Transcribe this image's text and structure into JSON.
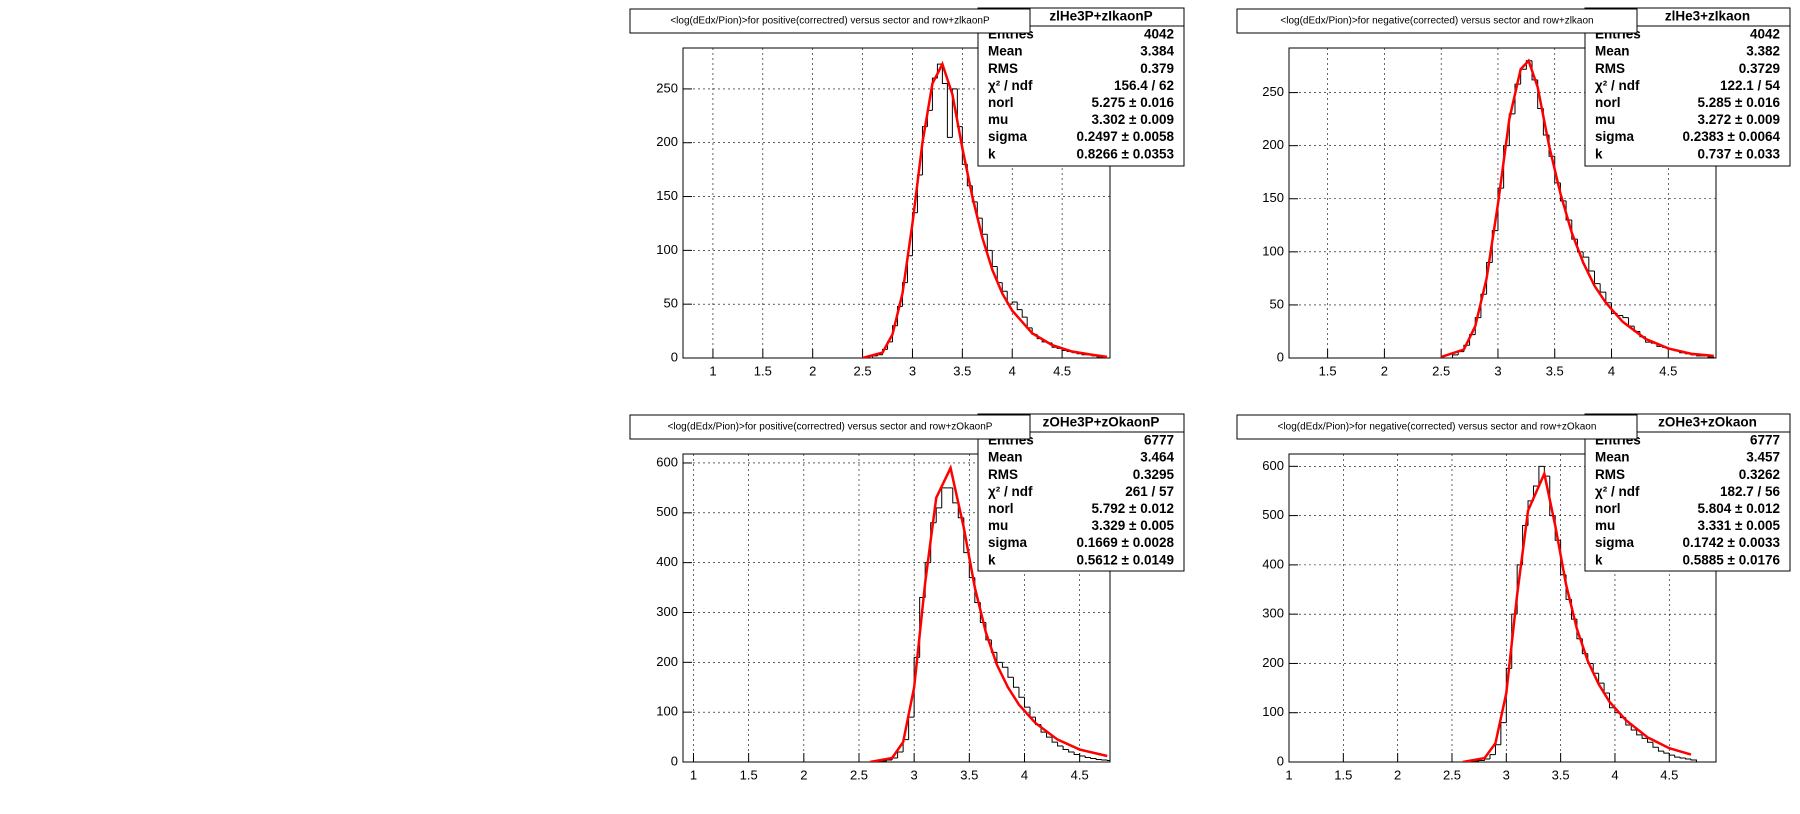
{
  "chart_data": [
    {
      "type": "histogram",
      "title": "<log(dEdx/Pion)>for positive(correctred) versus sector and row+zlkaonP",
      "stats": {
        "title": "zlHe3P+zIkaonP",
        "rows": [
          {
            "label": "Entries",
            "value": "4042"
          },
          {
            "label": "Mean",
            "value": "3.384"
          },
          {
            "label": "RMS",
            "value": "0.379"
          },
          {
            "label": "χ² / ndf",
            "value": "156.4 / 62"
          },
          {
            "label": "norl",
            "value": "5.275 ± 0.016"
          },
          {
            "label": "mu",
            "value": "3.302 ± 0.009"
          },
          {
            "label": "sigma",
            "value": "0.2497 ± 0.0058"
          },
          {
            "label": "k",
            "value": "0.8266 ± 0.0353"
          }
        ]
      },
      "color": "#000000",
      "bins": [
        2.6,
        2.65,
        2.7,
        2.75,
        2.8,
        2.85,
        2.9,
        2.95,
        3.0,
        3.05,
        3.1,
        3.15,
        3.2,
        3.25,
        3.3,
        3.35,
        3.4,
        3.45,
        3.5,
        3.55,
        3.6,
        3.65,
        3.7,
        3.75,
        3.8,
        3.85,
        3.9,
        3.95,
        4.0,
        4.05,
        4.1,
        4.15,
        4.2,
        4.25,
        4.3,
        4.35,
        4.4,
        4.45,
        4.5,
        4.55,
        4.6,
        4.65,
        4.7,
        4.75,
        4.8,
        4.85,
        4.9
      ],
      "counts": [
        2,
        3,
        8,
        15,
        30,
        48,
        70,
        95,
        135,
        170,
        215,
        230,
        260,
        273,
        255,
        205,
        250,
        215,
        180,
        160,
        145,
        130,
        115,
        100,
        85,
        70,
        62,
        50,
        52,
        45,
        38,
        28,
        22,
        18,
        15,
        14,
        10,
        9,
        7,
        6,
        5,
        4,
        3,
        3,
        2,
        1
      ],
      "fit": {
        "color": "#ff0000",
        "x": [
          2.5,
          2.7,
          2.8,
          2.9,
          3.0,
          3.1,
          3.2,
          3.3,
          3.4,
          3.5,
          3.6,
          3.7,
          3.8,
          3.9,
          4.0,
          4.2,
          4.4,
          4.6,
          4.8,
          4.95
        ],
        "y": [
          0,
          5,
          22,
          60,
          125,
          200,
          255,
          273,
          245,
          195,
          150,
          112,
          82,
          60,
          44,
          23,
          12,
          6,
          3,
          1
        ]
      },
      "xlim": [
        0.7,
        4.98
      ],
      "ylim": [
        0,
        288
      ],
      "xticks": [
        1,
        1.5,
        2,
        2.5,
        3,
        3.5,
        4,
        4.5
      ],
      "yticks": [
        0,
        50,
        100,
        150,
        200,
        250
      ],
      "grid": true
    },
    {
      "type": "histogram",
      "title": "<log(dEdx/Pion)>for negative(corrected) versus sector and row+zlkaon",
      "stats": {
        "title": "zlHe3+zIkaon",
        "rows": [
          {
            "label": "Entries",
            "value": "4042"
          },
          {
            "label": "Mean",
            "value": "3.382"
          },
          {
            "label": "RMS",
            "value": "0.3729"
          },
          {
            "label": "χ² / ndf",
            "value": "122.1 / 54"
          },
          {
            "label": "norl",
            "value": "5.285 ± 0.016"
          },
          {
            "label": "mu",
            "value": "3.272 ± 0.009"
          },
          {
            "label": "sigma",
            "value": "0.2383 ± 0.0064"
          },
          {
            "label": "k",
            "value": "0.737 ± 0.033"
          }
        ]
      },
      "color": "#000000",
      "bins": [
        2.6,
        2.65,
        2.7,
        2.75,
        2.8,
        2.85,
        2.9,
        2.95,
        3.0,
        3.05,
        3.1,
        3.15,
        3.2,
        3.25,
        3.3,
        3.35,
        3.4,
        3.45,
        3.5,
        3.55,
        3.6,
        3.65,
        3.7,
        3.75,
        3.8,
        3.85,
        3.9,
        3.95,
        4.0,
        4.05,
        4.1,
        4.15,
        4.2,
        4.25,
        4.3,
        4.35,
        4.4,
        4.45,
        4.5,
        4.55,
        4.6,
        4.65,
        4.7,
        4.75,
        4.8,
        4.85,
        4.9
      ],
      "counts": [
        3,
        6,
        12,
        22,
        38,
        60,
        90,
        120,
        160,
        200,
        230,
        258,
        272,
        280,
        262,
        235,
        210,
        190,
        165,
        148,
        130,
        112,
        100,
        95,
        82,
        70,
        62,
        52,
        42,
        40,
        38,
        30,
        25,
        20,
        15,
        14,
        11,
        10,
        8,
        7,
        5,
        4,
        3,
        2,
        2,
        1
      ],
      "fit": {
        "color": "#ff0000",
        "x": [
          2.5,
          2.7,
          2.8,
          2.9,
          3.0,
          3.1,
          3.2,
          3.27,
          3.35,
          3.45,
          3.55,
          3.65,
          3.75,
          3.85,
          3.95,
          4.1,
          4.3,
          4.5,
          4.7,
          4.9
        ],
        "y": [
          1,
          8,
          30,
          75,
          145,
          225,
          272,
          280,
          255,
          200,
          155,
          118,
          90,
          68,
          52,
          34,
          18,
          9,
          4,
          2
        ]
      },
      "xlim": [
        1.16,
        4.92
      ],
      "ylim": [
        0,
        292
      ],
      "xticks": [
        1.5,
        2,
        2.5,
        3,
        3.5,
        4,
        4.5
      ],
      "yticks": [
        0,
        50,
        100,
        150,
        200,
        250
      ],
      "grid": true
    },
    {
      "type": "histogram",
      "title": "<log(dEdx/Pion)>for positive(correctred) versus sector and row+zOkaonP",
      "stats": {
        "title": "zOHe3P+zOkaonP",
        "rows": [
          {
            "label": "Entries",
            "value": "6777"
          },
          {
            "label": "Mean",
            "value": "3.464"
          },
          {
            "label": "RMS",
            "value": "0.3295"
          },
          {
            "label": "χ² / ndf",
            "value": "261 / 57"
          },
          {
            "label": "norl",
            "value": "5.792 ± 0.012"
          },
          {
            "label": "mu",
            "value": "3.329 ± 0.005"
          },
          {
            "label": "sigma",
            "value": "0.1669 ± 0.0028"
          },
          {
            "label": "k",
            "value": "0.5612 ± 0.0149"
          }
        ]
      },
      "color": "#000000",
      "bins": [
        2.7,
        2.75,
        2.8,
        2.85,
        2.9,
        2.95,
        3.0,
        3.05,
        3.1,
        3.15,
        3.2,
        3.25,
        3.3,
        3.35,
        3.4,
        3.45,
        3.5,
        3.55,
        3.6,
        3.65,
        3.7,
        3.75,
        3.8,
        3.85,
        3.9,
        3.95,
        4.0,
        4.05,
        4.1,
        4.15,
        4.2,
        4.25,
        4.3,
        4.35,
        4.4,
        4.45,
        4.5,
        4.55,
        4.6,
        4.65,
        4.7,
        4.75,
        4.8
      ],
      "counts": [
        2,
        4,
        8,
        20,
        45,
        90,
        210,
        330,
        400,
        480,
        510,
        550,
        550,
        520,
        490,
        420,
        370,
        320,
        280,
        245,
        220,
        200,
        190,
        170,
        150,
        130,
        110,
        90,
        75,
        60,
        50,
        40,
        32,
        25,
        20,
        15,
        12,
        9,
        7,
        5,
        4,
        3
      ],
      "fit": {
        "color": "#ff0000",
        "x": [
          2.6,
          2.8,
          2.9,
          3.0,
          3.1,
          3.2,
          3.33,
          3.45,
          3.55,
          3.65,
          3.75,
          3.85,
          3.95,
          4.1,
          4.3,
          4.5,
          4.75
        ],
        "y": [
          0,
          8,
          40,
          150,
          360,
          530,
          590,
          470,
          350,
          260,
          195,
          150,
          115,
          78,
          45,
          25,
          12
        ]
      },
      "xlim": [
        0.905,
        4.775
      ],
      "ylim": [
        0,
        618
      ],
      "xticks": [
        1,
        1.5,
        2,
        2.5,
        3,
        3.5,
        4,
        4.5
      ],
      "yticks": [
        0,
        100,
        200,
        300,
        400,
        500,
        600
      ],
      "grid": true
    },
    {
      "type": "histogram",
      "title": "<log(dEdx/Pion)>for negative(corrected) versus sector and row+zOkaon",
      "stats": {
        "title": "zOHe3+zOkaon",
        "rows": [
          {
            "label": "Entries",
            "value": "6777"
          },
          {
            "label": "Mean",
            "value": "3.457"
          },
          {
            "label": "RMS",
            "value": "0.3262"
          },
          {
            "label": "χ² / ndf",
            "value": "182.7 / 56"
          },
          {
            "label": "norl",
            "value": "5.804 ± 0.012"
          },
          {
            "label": "mu",
            "value": "3.331 ± 0.005"
          },
          {
            "label": "sigma",
            "value": "0.1742 ± 0.0033"
          },
          {
            "label": "k",
            "value": "0.5885 ± 0.0176"
          }
        ]
      },
      "color": "#000000",
      "bins": [
        2.7,
        2.75,
        2.8,
        2.85,
        2.9,
        2.95,
        3.0,
        3.05,
        3.1,
        3.15,
        3.2,
        3.25,
        3.3,
        3.35,
        3.4,
        3.45,
        3.5,
        3.55,
        3.6,
        3.65,
        3.7,
        3.75,
        3.8,
        3.85,
        3.9,
        3.95,
        4.0,
        4.05,
        4.1,
        4.15,
        4.2,
        4.25,
        4.3,
        4.35,
        4.4,
        4.45,
        4.5,
        4.55,
        4.6,
        4.65,
        4.7,
        4.75
      ],
      "counts": [
        2,
        3,
        6,
        15,
        35,
        80,
        190,
        300,
        400,
        480,
        530,
        560,
        600,
        580,
        500,
        450,
        380,
        330,
        290,
        250,
        220,
        200,
        180,
        160,
        140,
        110,
        100,
        90,
        75,
        65,
        55,
        48,
        40,
        30,
        22,
        18,
        14,
        10,
        8,
        6,
        4
      ],
      "fit": {
        "color": "#ff0000",
        "x": [
          2.6,
          2.8,
          2.9,
          3.0,
          3.1,
          3.2,
          3.35,
          3.45,
          3.55,
          3.65,
          3.75,
          3.85,
          3.95,
          4.1,
          4.3,
          4.5,
          4.7
        ],
        "y": [
          0,
          8,
          38,
          140,
          340,
          510,
          585,
          480,
          360,
          270,
          205,
          158,
          122,
          85,
          50,
          28,
          15
        ]
      },
      "xlim": [
        1,
        4.93
      ],
      "ylim": [
        0,
        625
      ],
      "xticks": [
        1,
        1.5,
        2,
        2.5,
        3,
        3.5,
        4,
        4.5
      ],
      "yticks": [
        0,
        100,
        200,
        300,
        400,
        500,
        600
      ],
      "grid": true
    }
  ]
}
